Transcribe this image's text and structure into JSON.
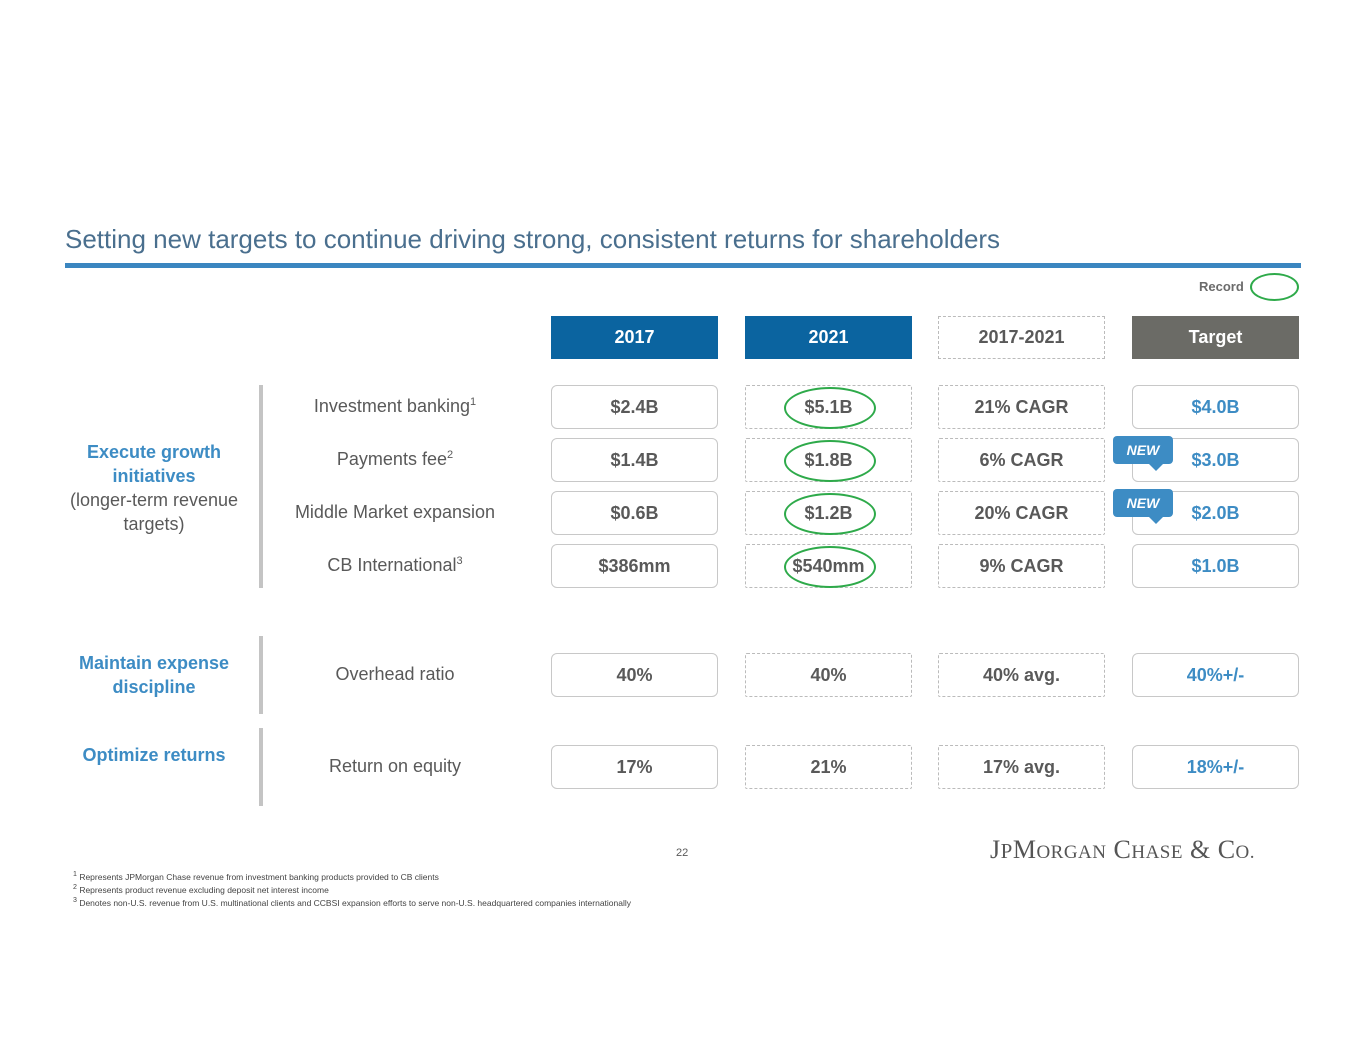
{
  "title": "Setting new targets to continue driving strong, consistent returns for shareholders",
  "legend": {
    "record_label": "Record",
    "record_color": "#2eaa4a"
  },
  "columns": [
    "2017",
    "2021",
    "2017-2021",
    "Target"
  ],
  "groups": [
    {
      "bold": "Execute growth initiatives",
      "sub": "(longer-term revenue targets)"
    },
    {
      "bold": "Maintain expense discipline"
    },
    {
      "bold": "Optimize returns"
    }
  ],
  "rows": [
    {
      "label": "Investment banking",
      "sup": "1",
      "v2017": "$2.4B",
      "v2021": "$5.1B",
      "cagr": "21% CAGR",
      "target": "$4.0B",
      "record": true,
      "new": false
    },
    {
      "label": "Payments fee",
      "sup": "2",
      "v2017": "$1.4B",
      "v2021": "$1.8B",
      "cagr": "6% CAGR",
      "target": "$3.0B",
      "record": true,
      "new": true
    },
    {
      "label": "Middle Market expansion",
      "sup": "",
      "v2017": "$0.6B",
      "v2021": "$1.2B",
      "cagr": "20% CAGR",
      "target": "$2.0B",
      "record": true,
      "new": true
    },
    {
      "label": "CB International",
      "sup": "3",
      "v2017": "$386mm",
      "v2021": "$540mm",
      "cagr": "9% CAGR",
      "target": "$1.0B",
      "record": true,
      "new": false
    },
    {
      "label": "Overhead ratio",
      "sup": "",
      "v2017": "40%",
      "v2021": "40%",
      "cagr": "40% avg.",
      "target": "40%+/-",
      "record": false,
      "new": false
    },
    {
      "label": "Return on equity",
      "sup": "",
      "v2017": "17%",
      "v2021": "21%",
      "cagr": "17% avg.",
      "target": "18%+/-",
      "record": false,
      "new": false
    }
  ],
  "new_badge": "NEW",
  "page_number": "22",
  "logo": "JPMORGAN CHASE & CO.",
  "footnotes": [
    "Represents JPMorgan Chase revenue from investment banking products provided to CB clients",
    "Represents product revenue excluding deposit net interest income",
    "Denotes non-U.S. revenue from U.S. multinational clients and CCBSI expansion efforts to serve non-U.S. headquartered companies internationally"
  ],
  "colors": {
    "header_blue": "#0b64a0",
    "target_gray": "#6b6b66",
    "accent_blue": "#3d8cc4"
  }
}
